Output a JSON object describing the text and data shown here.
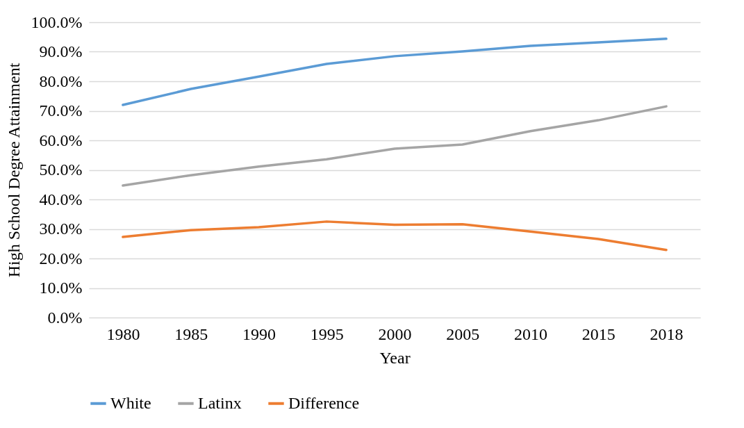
{
  "chart_data": {
    "type": "line",
    "xlabel": "Year",
    "ylabel": "High School Degree Attainment",
    "categories": [
      "1980",
      "1985",
      "1990",
      "1995",
      "2000",
      "2005",
      "2010",
      "2015",
      "2018"
    ],
    "series": [
      {
        "name": "White",
        "color": "#5b9bd5",
        "values": [
          72.0,
          77.4,
          81.6,
          85.9,
          88.5,
          90.1,
          92.0,
          93.2,
          94.4
        ]
      },
      {
        "name": "Latinx",
        "color": "#a5a5a5",
        "values": [
          44.7,
          48.2,
          51.1,
          53.6,
          57.2,
          58.6,
          63.1,
          66.8,
          71.5
        ]
      },
      {
        "name": "Difference",
        "color": "#ed7d31",
        "values": [
          27.3,
          29.6,
          30.6,
          32.5,
          31.4,
          31.6,
          29.1,
          26.6,
          22.9
        ]
      }
    ],
    "ylim": [
      0,
      100
    ],
    "yticks": [
      {
        "value": 0,
        "label": "0.0%"
      },
      {
        "value": 10,
        "label": "10.0%"
      },
      {
        "value": 20,
        "label": "20.0%"
      },
      {
        "value": 30,
        "label": "30.0%"
      },
      {
        "value": 40,
        "label": "40.0%"
      },
      {
        "value": 50,
        "label": "50.0%"
      },
      {
        "value": 60,
        "label": "60.0%"
      },
      {
        "value": 70,
        "label": "70.0%"
      },
      {
        "value": 80,
        "label": "80.0%"
      },
      {
        "value": 90,
        "label": "90.0%"
      },
      {
        "value": 100,
        "label": "100.0%"
      }
    ],
    "grid": "y",
    "legend": "bottom"
  }
}
